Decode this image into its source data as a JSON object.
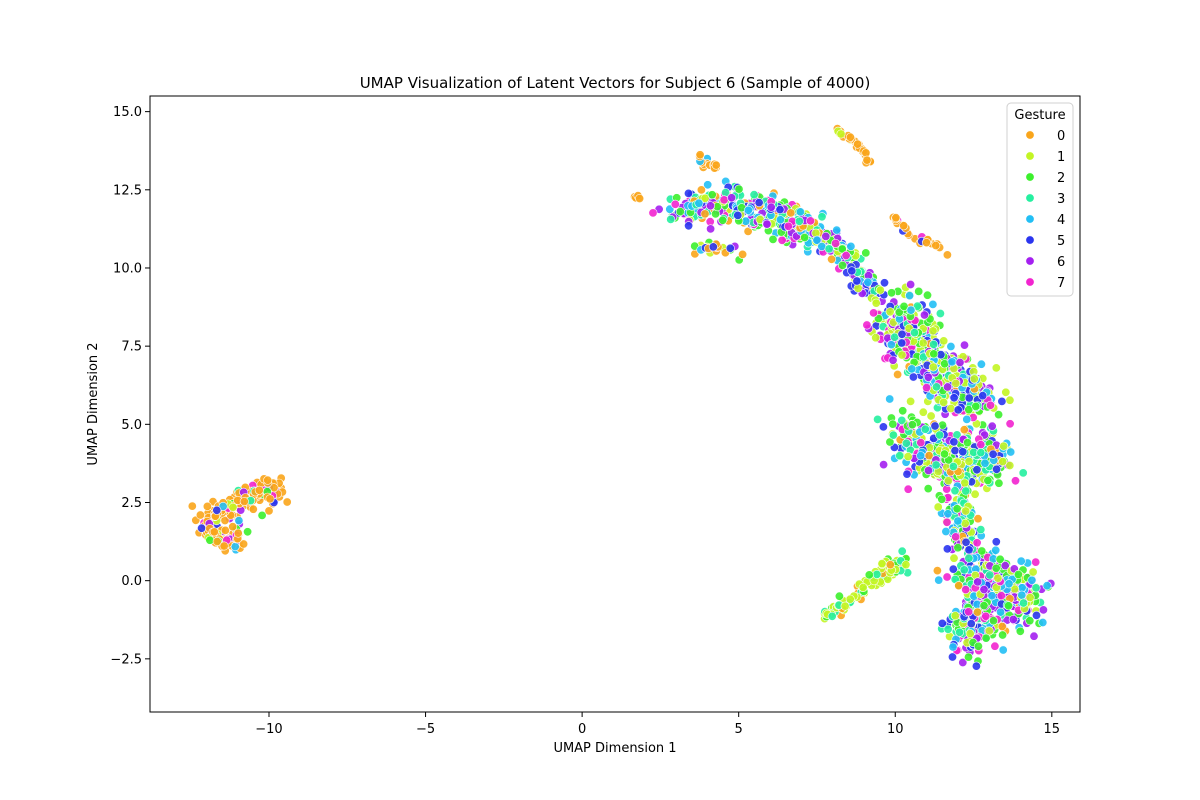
{
  "chart_data": {
    "type": "scatter",
    "title": "UMAP Visualization of Latent Vectors for Subject 6 (Sample of 4000)",
    "xlabel": "UMAP Dimension 1",
    "ylabel": "UMAP Dimension 2",
    "xlim": [
      -13.8,
      15.9
    ],
    "ylim": [
      -4.2,
      15.5
    ],
    "xticks": [
      -10,
      -5,
      0,
      5,
      10,
      15
    ],
    "xtick_labels": [
      "−10",
      "−5",
      "0",
      "5",
      "10",
      "15"
    ],
    "yticks": [
      -2.5,
      0.0,
      2.5,
      5.0,
      7.5,
      10.0,
      12.5,
      15.0
    ],
    "ytick_labels": [
      "−2.5",
      "0.0",
      "2.5",
      "5.0",
      "7.5",
      "10.0",
      "12.5",
      "15.0"
    ],
    "grid": false,
    "legend": {
      "title": "Gesture",
      "placement": "top-right",
      "entries": [
        {
          "label": "0",
          "color": "#f9a51b"
        },
        {
          "label": "1",
          "color": "#c3f524"
        },
        {
          "label": "2",
          "color": "#3cf02c"
        },
        {
          "label": "3",
          "color": "#25f0a0"
        },
        {
          "label": "4",
          "color": "#22bff5"
        },
        {
          "label": "5",
          "color": "#2a35ef"
        },
        {
          "label": "6",
          "color": "#a41ff0"
        },
        {
          "label": "7",
          "color": "#f224cf"
        }
      ]
    },
    "clusters": [
      {
        "region": "left-band",
        "path": [
          [
            -12.0,
            1.8
          ],
          [
            -11.4,
            2.3
          ],
          [
            -10.8,
            2.6
          ],
          [
            -10.2,
            2.8
          ],
          [
            -9.6,
            3.0
          ]
        ],
        "spread": 0.28,
        "count": 150,
        "mix": [
          0.72,
          0.06,
          0.03,
          0.03,
          0.03,
          0.03,
          0.06,
          0.04
        ]
      },
      {
        "region": "left-loop",
        "path": [
          [
            -12.0,
            1.6
          ],
          [
            -11.6,
            1.2
          ],
          [
            -11.1,
            1.2
          ],
          [
            -11.0,
            1.7
          ]
        ],
        "spread": 0.2,
        "count": 60,
        "mix": [
          0.72,
          0.06,
          0.03,
          0.03,
          0.03,
          0.03,
          0.06,
          0.04
        ]
      },
      {
        "region": "small-orange",
        "path": [
          [
            1.6,
            12.35
          ],
          [
            1.8,
            12.2
          ]
        ],
        "spread": 0.05,
        "count": 6,
        "mix": [
          1,
          0,
          0,
          0,
          0,
          0,
          0,
          0
        ]
      },
      {
        "region": "top-arc",
        "path": [
          [
            8.1,
            14.4
          ],
          [
            8.6,
            14.1
          ],
          [
            9.0,
            13.7
          ],
          [
            9.2,
            13.3
          ]
        ],
        "spread": 0.05,
        "count": 28,
        "mix": [
          0.85,
          0.15,
          0,
          0,
          0,
          0,
          0,
          0
        ]
      },
      {
        "region": "upper-band",
        "path": [
          [
            3.0,
            11.8
          ],
          [
            4.0,
            12.0
          ],
          [
            5.0,
            11.9
          ],
          [
            6.0,
            11.8
          ],
          [
            7.0,
            11.3
          ],
          [
            7.8,
            10.9
          ]
        ],
        "spread": 0.42,
        "count": 330,
        "mix": [
          0.1,
          0.06,
          0.16,
          0.12,
          0.18,
          0.16,
          0.14,
          0.08
        ]
      },
      {
        "region": "upper-band-left-tail",
        "path": [
          [
            3.6,
            10.6
          ],
          [
            4.3,
            10.7
          ],
          [
            5.0,
            10.5
          ]
        ],
        "spread": 0.12,
        "count": 25,
        "mix": [
          0.4,
          0.1,
          0.1,
          0.1,
          0.1,
          0.1,
          0.05,
          0.05
        ]
      },
      {
        "region": "upper-band-tip",
        "path": [
          [
            3.8,
            13.5
          ],
          [
            4.5,
            13.1
          ]
        ],
        "spread": 0.12,
        "count": 14,
        "mix": [
          0.8,
          0.1,
          0,
          0,
          0.1,
          0,
          0,
          0
        ]
      },
      {
        "region": "diagonal-bridge",
        "path": [
          [
            7.8,
            10.9
          ],
          [
            8.5,
            10.2
          ],
          [
            9.0,
            9.6
          ],
          [
            9.5,
            9.2
          ]
        ],
        "spread": 0.28,
        "count": 110,
        "mix": [
          0.04,
          0.1,
          0.14,
          0.14,
          0.2,
          0.18,
          0.12,
          0.08
        ]
      },
      {
        "region": "right-arm-tail",
        "path": [
          [
            10.0,
            11.6
          ],
          [
            10.5,
            11.0
          ],
          [
            11.0,
            10.8
          ],
          [
            11.7,
            10.5
          ]
        ],
        "spread": 0.08,
        "count": 26,
        "mix": [
          0.75,
          0.05,
          0.05,
          0.05,
          0.05,
          0.05,
          0,
          0.05
        ]
      },
      {
        "region": "upper-right-cluster",
        "path": [
          [
            9.8,
            8.6
          ],
          [
            10.4,
            8.0
          ],
          [
            11.0,
            7.2
          ],
          [
            11.6,
            6.6
          ],
          [
            12.2,
            6.0
          ],
          [
            12.8,
            5.5
          ]
        ],
        "spread": 0.58,
        "count": 520,
        "mix": [
          0.04,
          0.22,
          0.2,
          0.1,
          0.14,
          0.12,
          0.1,
          0.08
        ]
      },
      {
        "region": "middle-right-cluster",
        "path": [
          [
            10.4,
            4.8
          ],
          [
            11.0,
            4.2
          ],
          [
            11.8,
            3.8
          ],
          [
            12.6,
            3.8
          ],
          [
            13.1,
            4.2
          ]
        ],
        "spread": 0.6,
        "count": 420,
        "mix": [
          0.04,
          0.2,
          0.2,
          0.1,
          0.14,
          0.14,
          0.1,
          0.08
        ]
      },
      {
        "region": "neck",
        "path": [
          [
            11.8,
            2.8
          ],
          [
            12.1,
            1.8
          ],
          [
            12.3,
            1.0
          ]
        ],
        "spread": 0.3,
        "count": 120,
        "mix": [
          0.04,
          0.18,
          0.16,
          0.1,
          0.14,
          0.14,
          0.12,
          0.12
        ]
      },
      {
        "region": "lower-right-cluster",
        "path": [
          [
            12.4,
            0.6
          ],
          [
            13.0,
            0.0
          ],
          [
            13.6,
            -0.4
          ],
          [
            14.2,
            -0.4
          ],
          [
            12.6,
            -1.2
          ],
          [
            12.1,
            -2.0
          ]
        ],
        "spread": 0.58,
        "count": 520,
        "mix": [
          0.03,
          0.1,
          0.14,
          0.14,
          0.14,
          0.16,
          0.16,
          0.13
        ]
      },
      {
        "region": "lower-diagonal-strip",
        "path": [
          [
            7.8,
            -1.2
          ],
          [
            8.5,
            -0.7
          ],
          [
            9.2,
            -0.1
          ],
          [
            9.8,
            0.4
          ],
          [
            10.3,
            0.7
          ]
        ],
        "spread": 0.18,
        "count": 110,
        "mix": [
          0.08,
          0.5,
          0.2,
          0.2,
          0.02,
          0,
          0,
          0
        ]
      }
    ]
  }
}
